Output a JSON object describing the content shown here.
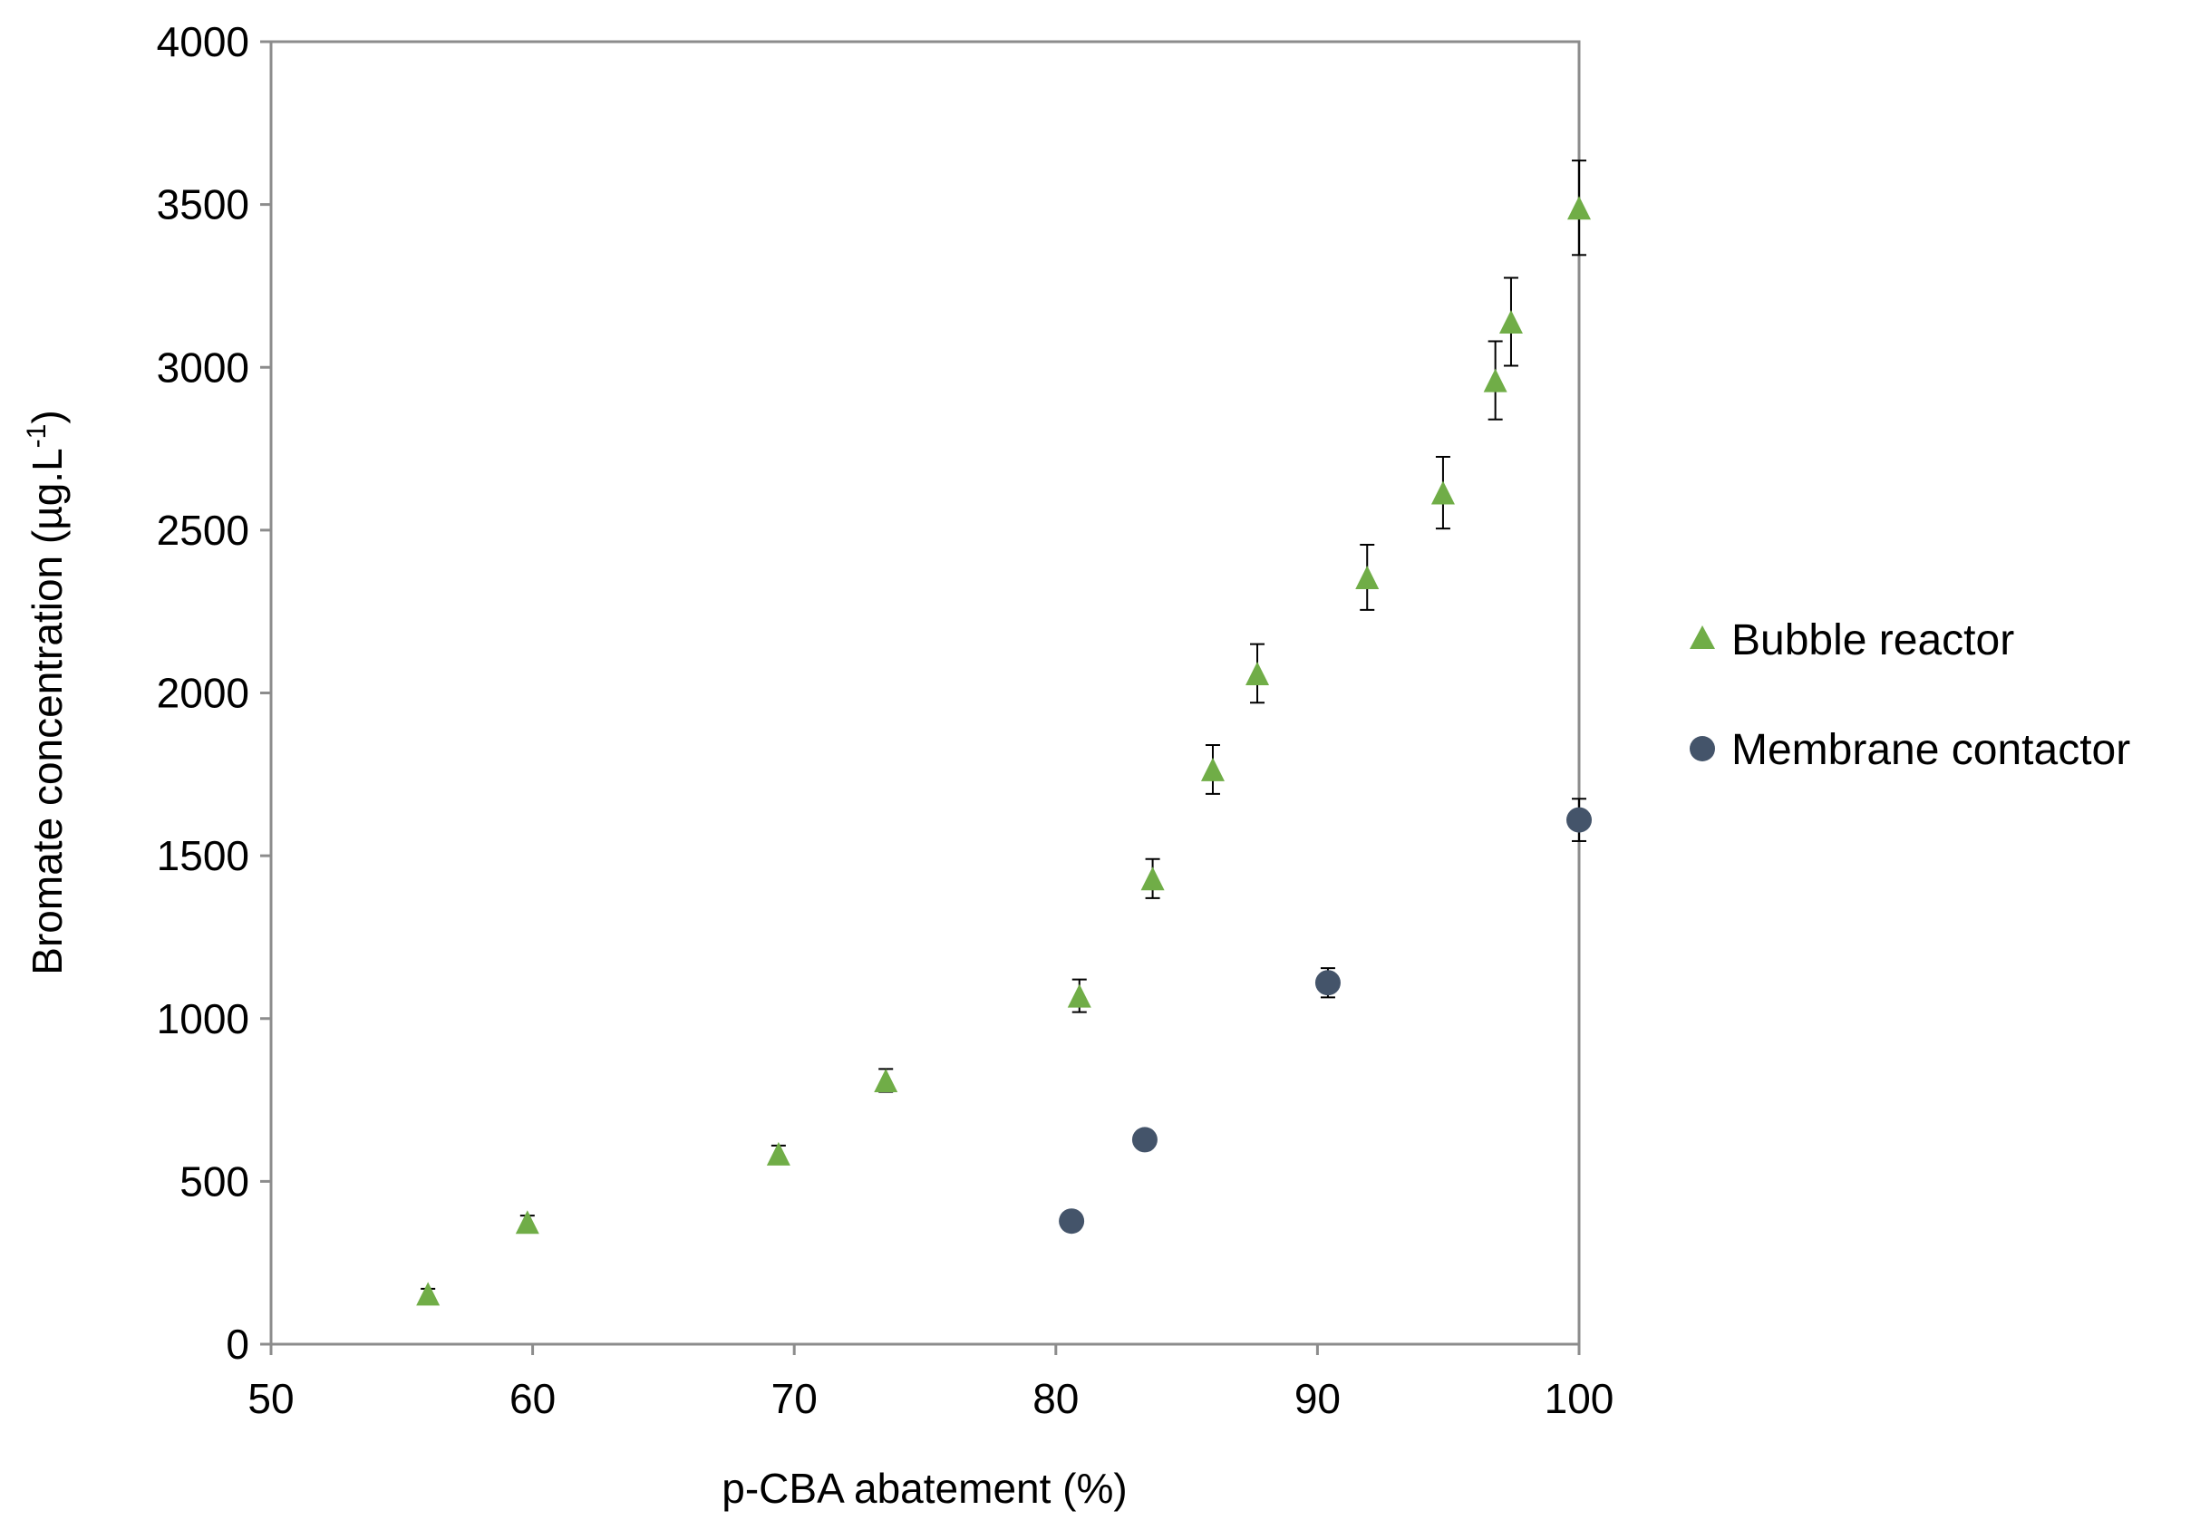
{
  "chart_data": {
    "type": "scatter",
    "title": "",
    "xlabel": "p-CBA abatement (%)",
    "ylabel_main": "Bromate concentration (µg.L",
    "ylabel_sup": "-1",
    "ylabel_close": ")",
    "xlim": [
      50,
      100
    ],
    "ylim": [
      0,
      4000
    ],
    "xticks": [
      50,
      60,
      70,
      80,
      90,
      100
    ],
    "yticks": [
      0,
      500,
      1000,
      1500,
      2000,
      2500,
      3000,
      3500,
      4000
    ],
    "grid": false,
    "legend_position": "right",
    "series": [
      {
        "name": "Bubble reactor",
        "marker": "triangle",
        "color": "#70ad47",
        "points": [
          {
            "x": 56.0,
            "y": 155,
            "err": 15
          },
          {
            "x": 59.8,
            "y": 375,
            "err": 20
          },
          {
            "x": 69.4,
            "y": 585,
            "err": 25
          },
          {
            "x": 73.5,
            "y": 810,
            "err": 35
          },
          {
            "x": 80.9,
            "y": 1070,
            "err": 50
          },
          {
            "x": 83.7,
            "y": 1430,
            "err": 60
          },
          {
            "x": 86.0,
            "y": 1765,
            "err": 75
          },
          {
            "x": 87.7,
            "y": 2060,
            "err": 90
          },
          {
            "x": 91.9,
            "y": 2355,
            "err": 100
          },
          {
            "x": 94.8,
            "y": 2615,
            "err": 110
          },
          {
            "x": 96.8,
            "y": 2960,
            "err": 120
          },
          {
            "x": 97.4,
            "y": 3140,
            "err": 135
          },
          {
            "x": 100.0,
            "y": 3490,
            "err": 145
          }
        ]
      },
      {
        "name": "Membrane contactor",
        "marker": "circle",
        "color": "#44546a",
        "points": [
          {
            "x": 80.6,
            "y": 378,
            "err": 10
          },
          {
            "x": 83.4,
            "y": 628,
            "err": 12
          },
          {
            "x": 90.4,
            "y": 1110,
            "err": 45
          },
          {
            "x": 100.0,
            "y": 1610,
            "err": 65
          }
        ]
      }
    ]
  }
}
